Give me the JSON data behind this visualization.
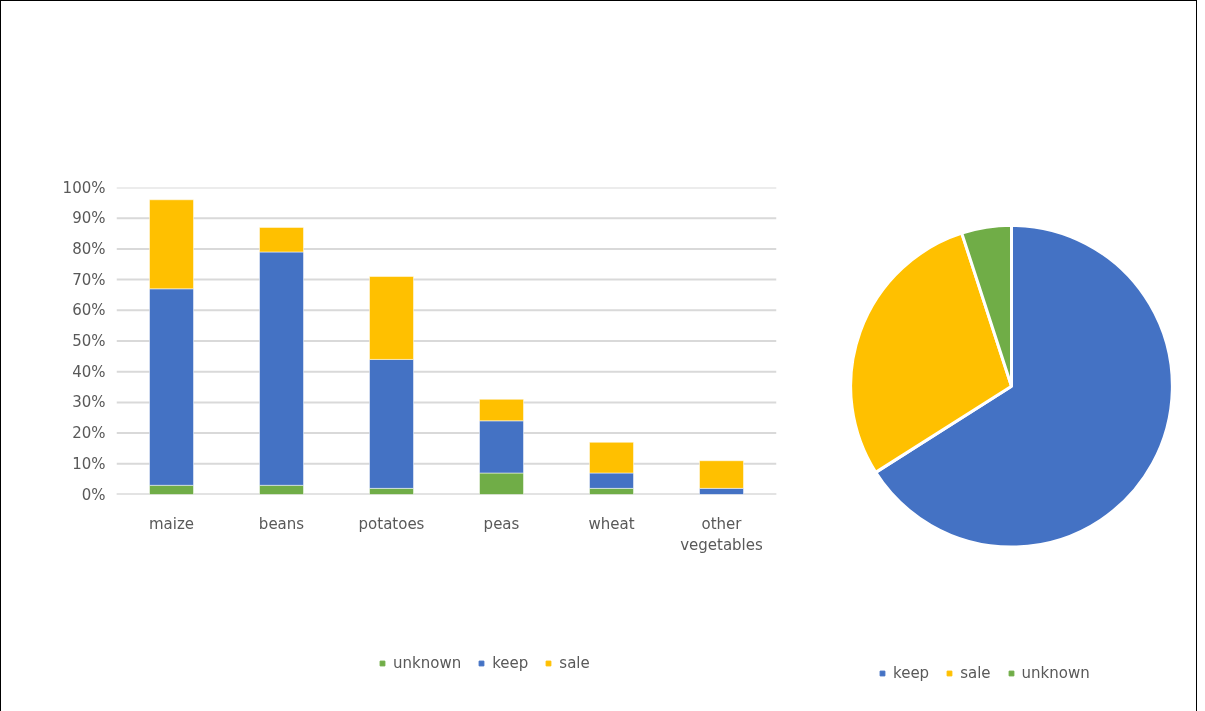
{
  "chart_data": [
    {
      "type": "bar",
      "stacked": true,
      "categories": [
        "maize",
        "beans",
        "potatoes",
        "peas",
        "wheat",
        "other vegetables"
      ],
      "series": [
        {
          "name": "unknown",
          "color": "#70ad47",
          "values": [
            3,
            3,
            2,
            7,
            2,
            0
          ]
        },
        {
          "name": "keep",
          "color": "#4472c4",
          "values": [
            64,
            76,
            42,
            17,
            5,
            2
          ]
        },
        {
          "name": "sale",
          "color": "#ffc000",
          "values": [
            29,
            8,
            27,
            7,
            10,
            9
          ]
        }
      ],
      "ylim": [
        0,
        100
      ],
      "yticks": [
        {
          "value": 0,
          "label": "0%"
        },
        {
          "value": 10,
          "label": "10%"
        },
        {
          "value": 20,
          "label": "20%"
        },
        {
          "value": 30,
          "label": "30%"
        },
        {
          "value": 40,
          "label": "40%"
        },
        {
          "value": 50,
          "label": "50%"
        },
        {
          "value": 60,
          "label": "60%"
        },
        {
          "value": 70,
          "label": "70%"
        },
        {
          "value": 80,
          "label": "80%"
        },
        {
          "value": 90,
          "label": "90%"
        },
        {
          "value": 100,
          "label": "100%"
        }
      ],
      "grid": "y",
      "legend": "bottom"
    },
    {
      "type": "pie",
      "categories": [
        "keep",
        "sale",
        "unknown"
      ],
      "values": [
        66,
        29,
        5
      ],
      "colors": [
        "#4472c4",
        "#ffc000",
        "#70ad47"
      ],
      "legend": "bottom"
    }
  ]
}
